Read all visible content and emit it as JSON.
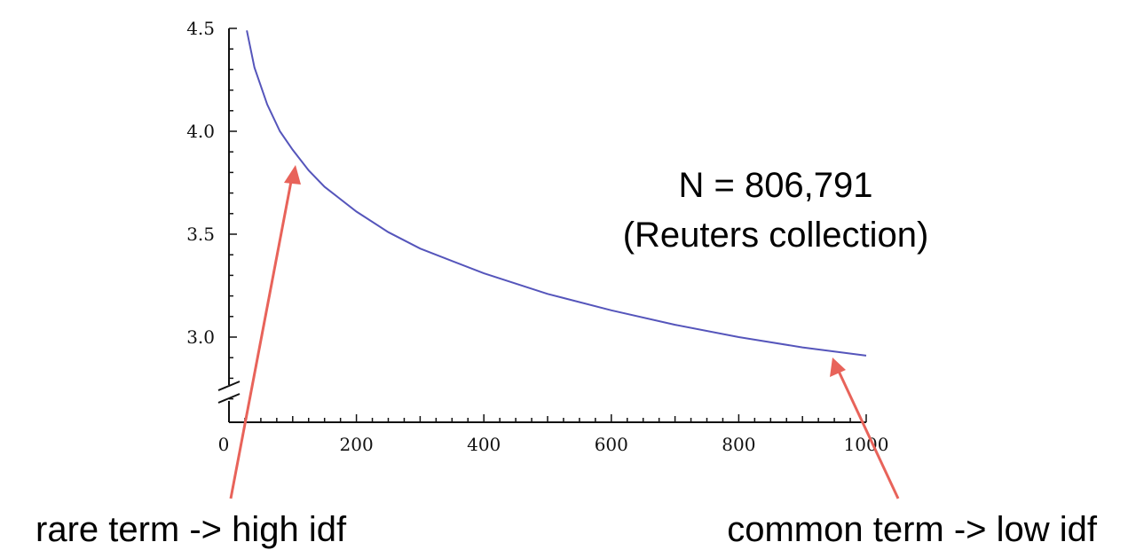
{
  "chart_data": {
    "type": "line",
    "title": "",
    "xlabel": "",
    "ylabel": "",
    "xlim": [
      0,
      1000
    ],
    "ylim": [
      2.6,
      4.5
    ],
    "y_axis_broken": true,
    "x_ticks": [
      0,
      200,
      400,
      600,
      800,
      1000
    ],
    "x_tick_labels": [
      "0",
      "200",
      "400",
      "600",
      "800",
      "1000"
    ],
    "y_ticks": [
      3.0,
      3.5,
      4.0,
      4.5
    ],
    "y_tick_labels": [
      "3.0",
      "3.5",
      "4.0",
      "4.5"
    ],
    "series": [
      {
        "color": "#5555bb",
        "x": [
          28,
          40,
          60,
          80,
          100,
          125,
          150,
          200,
          250,
          300,
          400,
          500,
          600,
          700,
          800,
          900,
          1000
        ],
        "y": [
          4.49,
          4.31,
          4.13,
          4.0,
          3.91,
          3.81,
          3.73,
          3.61,
          3.51,
          3.43,
          3.31,
          3.21,
          3.13,
          3.06,
          3.0,
          2.95,
          2.91
        ]
      }
    ],
    "annotations": {
      "n_line": "N = 806,791",
      "collection": "(Reuters collection)",
      "rare": "rare term -> high idf",
      "common": "common term -> low idf"
    },
    "arrow_color": "#e8635a"
  }
}
